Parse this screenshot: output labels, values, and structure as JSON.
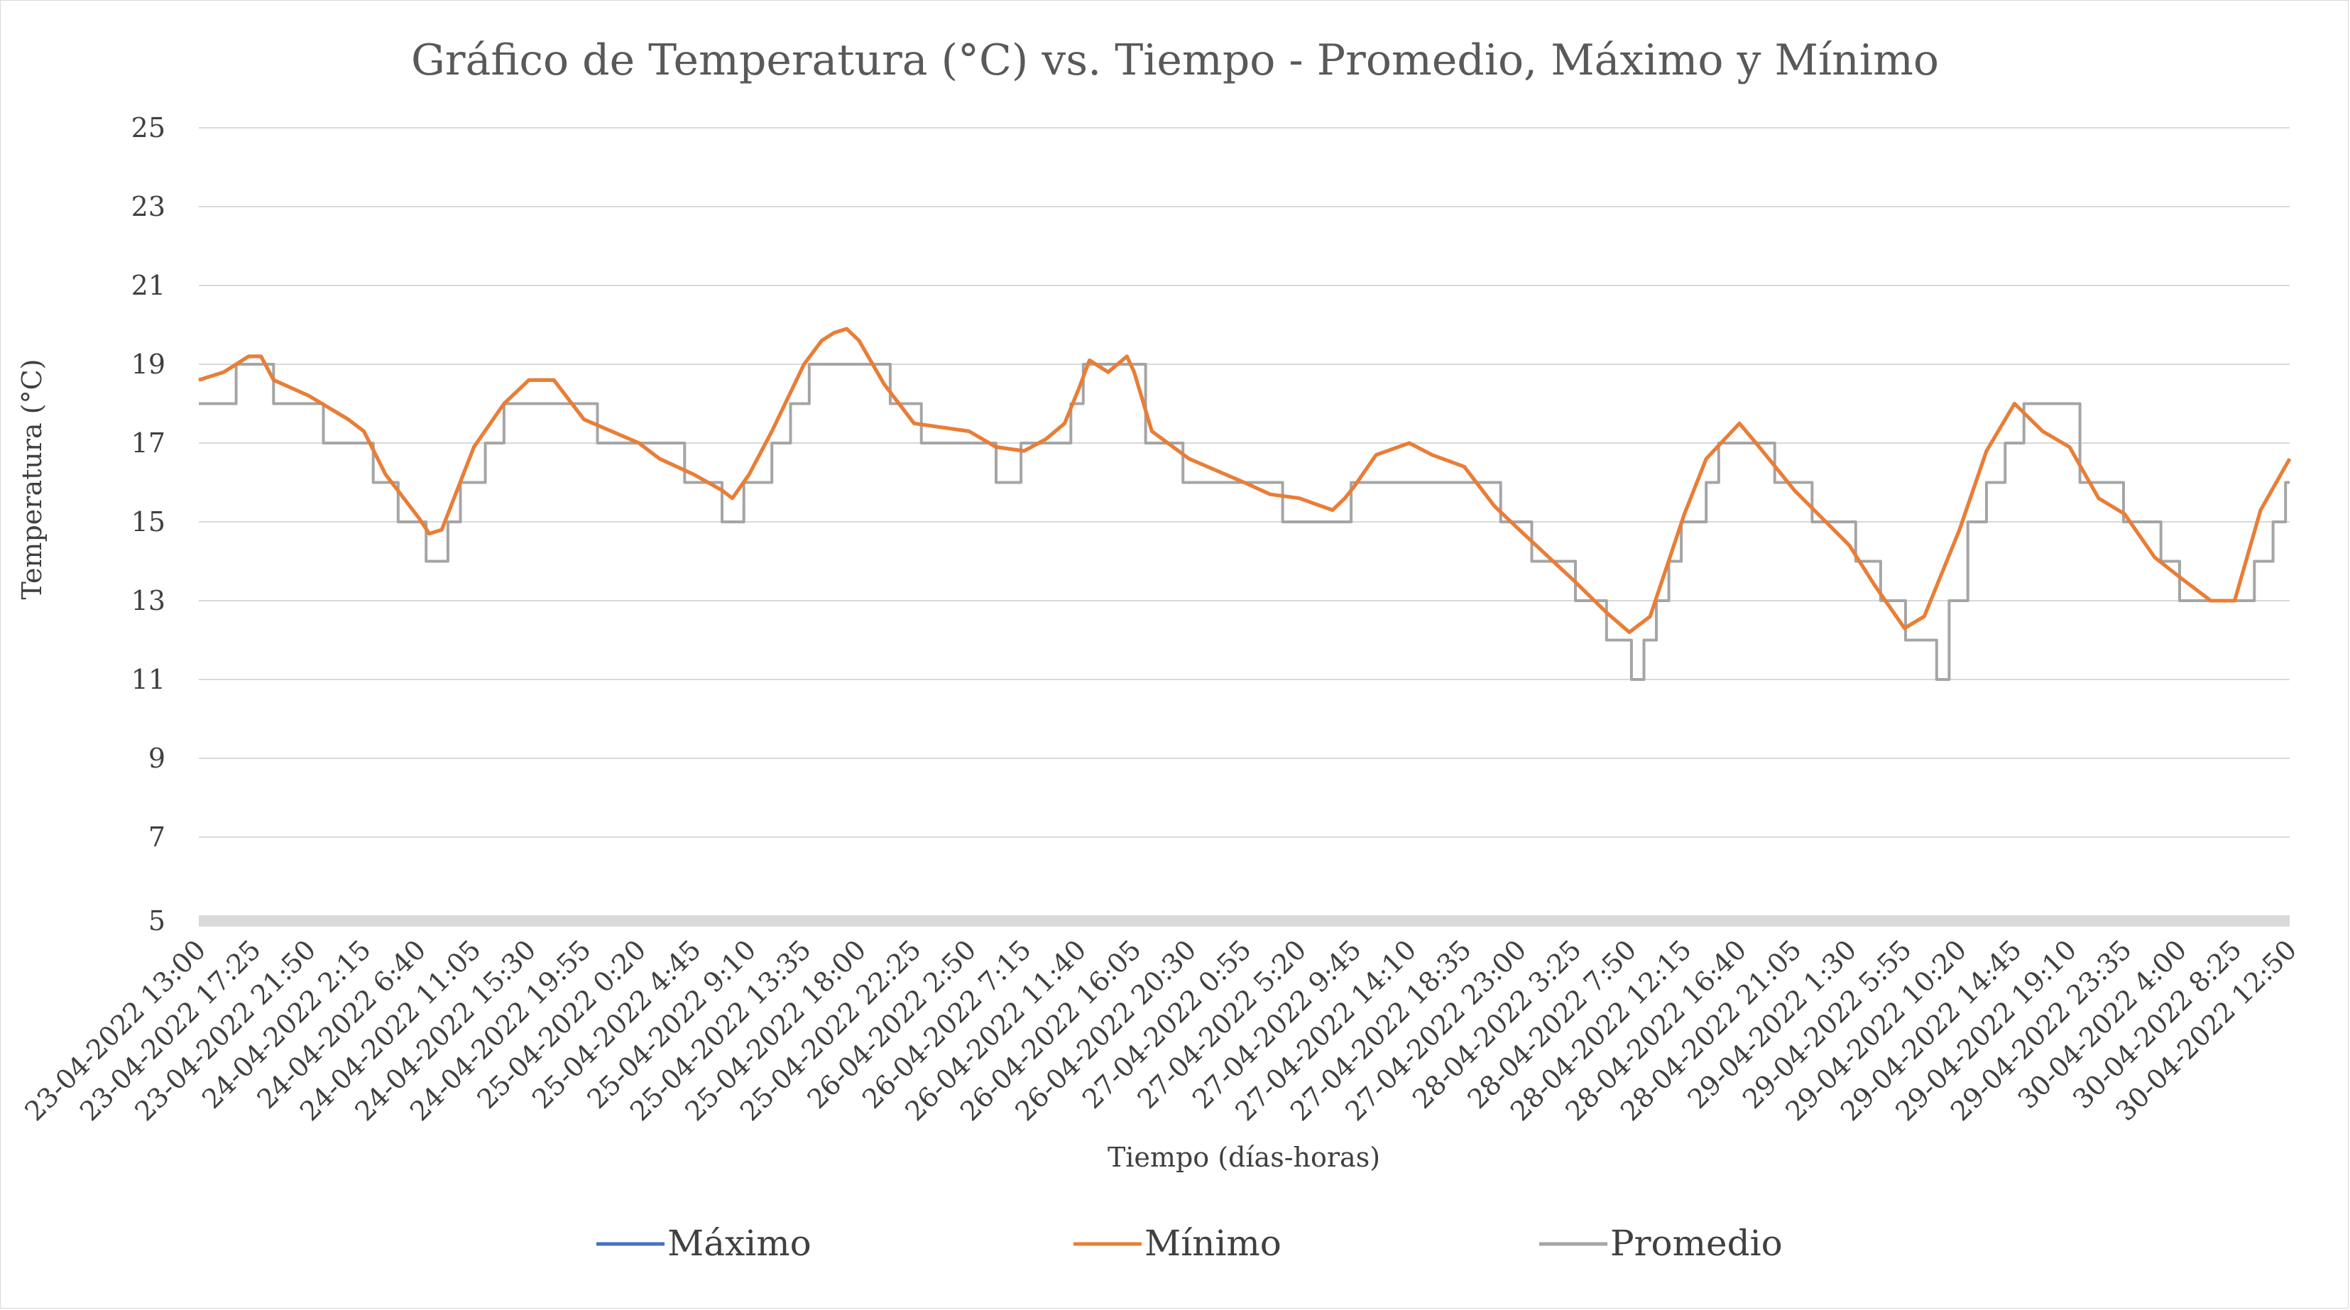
{
  "chart_data": {
    "type": "line",
    "title": "Gráfico de Temperatura (°C) vs. Tiempo - Promedio, Máximo y Mínimo",
    "xlabel": "Tiempo (días-horas)",
    "ylabel": "Temperatura (°C)",
    "ylim": [
      5,
      25
    ],
    "y_ticks": [
      "25",
      "23",
      "21",
      "19",
      "17",
      "15",
      "13",
      "11",
      "9",
      "7",
      "5"
    ],
    "x_tick_labels": [
      "23-04-2022 13:00",
      "23-04-2022 17:25",
      "23-04-2022 21:50",
      "24-04-2022 2:15",
      "24-04-2022 6:40",
      "24-04-2022 11:05",
      "24-04-2022 15:30",
      "24-04-2022 19:55",
      "25-04-2022 0:20",
      "25-04-2022 4:45",
      "25-04-2022 9:10",
      "25-04-2022 13:35",
      "25-04-2022 18:00",
      "25-04-2022 22:25",
      "26-04-2022 2:50",
      "26-04-2022 7:15",
      "26-04-2022 11:40",
      "26-04-2022 16:05",
      "26-04-2022 20:30",
      "27-04-2022 0:55",
      "27-04-2022 5:20",
      "27-04-2022 9:45",
      "27-04-2022 14:10",
      "27-04-2022 18:35",
      "27-04-2022 23:00",
      "28-04-2022 3:25",
      "28-04-2022 7:50",
      "28-04-2022 12:15",
      "28-04-2022 16:40",
      "28-04-2022 21:05",
      "29-04-2022 1:30",
      "29-04-2022 5:55",
      "29-04-2022 10:20",
      "29-04-2022 14:45",
      "29-04-2022 19:10",
      "29-04-2022 23:35",
      "30-04-2022 4:00",
      "30-04-2022 8:25",
      "30-04-2022 12:50"
    ],
    "grid": true,
    "legend_position": "bottom",
    "series": [
      {
        "name": "Máximo",
        "color": "#4472C4",
        "note_hidden_behind": "Mínimo",
        "points": [
          [
            "23-04-2022 13:00",
            18.6
          ],
          [
            "23-04-2022 15:00",
            18.8
          ],
          [
            "23-04-2022 17:00",
            19.2
          ],
          [
            "23-04-2022 18:00",
            19.2
          ],
          [
            "23-04-2022 19:00",
            18.6
          ],
          [
            "23-04-2022 21:50",
            18.2
          ],
          [
            "24-04-2022 1:00",
            17.6
          ],
          [
            "24-04-2022 2:15",
            17.3
          ],
          [
            "24-04-2022 4:00",
            16.2
          ],
          [
            "24-04-2022 6:40",
            15.1
          ],
          [
            "24-04-2022 7:30",
            14.7
          ],
          [
            "24-04-2022 8:30",
            14.8
          ],
          [
            "24-04-2022 11:05",
            16.9
          ],
          [
            "24-04-2022 13:30",
            18.0
          ],
          [
            "24-04-2022 15:30",
            18.6
          ],
          [
            "24-04-2022 17:30",
            18.6
          ],
          [
            "24-04-2022 19:55",
            17.6
          ],
          [
            "25-04-2022 0:20",
            17.0
          ],
          [
            "25-04-2022 2:00",
            16.6
          ],
          [
            "25-04-2022 4:45",
            16.2
          ],
          [
            "25-04-2022 7:00",
            15.8
          ],
          [
            "25-04-2022 7:50",
            15.6
          ],
          [
            "25-04-2022 9:10",
            16.2
          ],
          [
            "25-04-2022 11:00",
            17.3
          ],
          [
            "25-04-2022 13:35",
            19.0
          ],
          [
            "25-04-2022 15:00",
            19.6
          ],
          [
            "25-04-2022 16:00",
            19.8
          ],
          [
            "25-04-2022 17:00",
            19.9
          ],
          [
            "25-04-2022 18:00",
            19.6
          ],
          [
            "25-04-2022 20:00",
            18.5
          ],
          [
            "25-04-2022 22:25",
            17.5
          ],
          [
            "26-04-2022 2:50",
            17.3
          ],
          [
            "26-04-2022 5:00",
            16.9
          ],
          [
            "26-04-2022 7:15",
            16.8
          ],
          [
            "26-04-2022 9:00",
            17.1
          ],
          [
            "26-04-2022 10:30",
            17.5
          ],
          [
            "26-04-2022 11:40",
            18.4
          ],
          [
            "26-04-2022 12:30",
            19.1
          ],
          [
            "26-04-2022 14:00",
            18.8
          ],
          [
            "26-04-2022 15:30",
            19.2
          ],
          [
            "26-04-2022 16:05",
            18.8
          ],
          [
            "26-04-2022 17:30",
            17.3
          ],
          [
            "26-04-2022 20:30",
            16.6
          ],
          [
            "27-04-2022 0:55",
            16.0
          ],
          [
            "27-04-2022 3:00",
            15.7
          ],
          [
            "27-04-2022 5:20",
            15.6
          ],
          [
            "27-04-2022 8:00",
            15.3
          ],
          [
            "27-04-2022 9:00",
            15.6
          ],
          [
            "27-04-2022 9:45",
            15.9
          ],
          [
            "27-04-2022 11:30",
            16.7
          ],
          [
            "27-04-2022 14:10",
            17.0
          ],
          [
            "27-04-2022 16:00",
            16.7
          ],
          [
            "27-04-2022 18:35",
            16.4
          ],
          [
            "27-04-2022 21:00",
            15.4
          ],
          [
            "27-04-2022 23:00",
            14.8
          ],
          [
            "28-04-2022 3:25",
            13.5
          ],
          [
            "28-04-2022 6:00",
            12.7
          ],
          [
            "28-04-2022 7:50",
            12.2
          ],
          [
            "28-04-2022 9:30",
            12.6
          ],
          [
            "28-04-2022 12:15",
            15.2
          ],
          [
            "28-04-2022 14:00",
            16.6
          ],
          [
            "28-04-2022 16:40",
            17.5
          ],
          [
            "28-04-2022 18:00",
            17.0
          ],
          [
            "28-04-2022 21:05",
            15.8
          ],
          [
            "29-04-2022 1:30",
            14.4
          ],
          [
            "29-04-2022 3:30",
            13.4
          ],
          [
            "29-04-2022 5:55",
            12.3
          ],
          [
            "29-04-2022 7:30",
            12.6
          ],
          [
            "29-04-2022 10:20",
            14.8
          ],
          [
            "29-04-2022 12:30",
            16.8
          ],
          [
            "29-04-2022 14:45",
            18.0
          ],
          [
            "29-04-2022 17:00",
            17.3
          ],
          [
            "29-04-2022 19:10",
            16.9
          ],
          [
            "29-04-2022 21:30",
            15.6
          ],
          [
            "29-04-2022 23:35",
            15.2
          ],
          [
            "30-04-2022 2:00",
            14.1
          ],
          [
            "30-04-2022 4:00",
            13.6
          ],
          [
            "30-04-2022 6:30",
            13.0
          ],
          [
            "30-04-2022 8:25",
            13.0
          ],
          [
            "30-04-2022 10:30",
            15.3
          ],
          [
            "30-04-2022 12:50",
            16.6
          ]
        ]
      },
      {
        "name": "Mínimo",
        "color": "#ED7D31",
        "points": [
          [
            "23-04-2022 13:00",
            18.6
          ],
          [
            "23-04-2022 15:00",
            18.8
          ],
          [
            "23-04-2022 17:00",
            19.2
          ],
          [
            "23-04-2022 18:00",
            19.2
          ],
          [
            "23-04-2022 19:00",
            18.6
          ],
          [
            "23-04-2022 21:50",
            18.2
          ],
          [
            "24-04-2022 1:00",
            17.6
          ],
          [
            "24-04-2022 2:15",
            17.3
          ],
          [
            "24-04-2022 4:00",
            16.2
          ],
          [
            "24-04-2022 6:40",
            15.1
          ],
          [
            "24-04-2022 7:30",
            14.7
          ],
          [
            "24-04-2022 8:30",
            14.8
          ],
          [
            "24-04-2022 11:05",
            16.9
          ],
          [
            "24-04-2022 13:30",
            18.0
          ],
          [
            "24-04-2022 15:30",
            18.6
          ],
          [
            "24-04-2022 17:30",
            18.6
          ],
          [
            "24-04-2022 19:55",
            17.6
          ],
          [
            "25-04-2022 0:20",
            17.0
          ],
          [
            "25-04-2022 2:00",
            16.6
          ],
          [
            "25-04-2022 4:45",
            16.2
          ],
          [
            "25-04-2022 7:00",
            15.8
          ],
          [
            "25-04-2022 7:50",
            15.6
          ],
          [
            "25-04-2022 9:10",
            16.2
          ],
          [
            "25-04-2022 11:00",
            17.3
          ],
          [
            "25-04-2022 13:35",
            19.0
          ],
          [
            "25-04-2022 15:00",
            19.6
          ],
          [
            "25-04-2022 16:00",
            19.8
          ],
          [
            "25-04-2022 17:00",
            19.9
          ],
          [
            "25-04-2022 18:00",
            19.6
          ],
          [
            "25-04-2022 20:00",
            18.5
          ],
          [
            "25-04-2022 22:25",
            17.5
          ],
          [
            "26-04-2022 2:50",
            17.3
          ],
          [
            "26-04-2022 5:00",
            16.9
          ],
          [
            "26-04-2022 7:15",
            16.8
          ],
          [
            "26-04-2022 9:00",
            17.1
          ],
          [
            "26-04-2022 10:30",
            17.5
          ],
          [
            "26-04-2022 11:40",
            18.4
          ],
          [
            "26-04-2022 12:30",
            19.1
          ],
          [
            "26-04-2022 14:00",
            18.8
          ],
          [
            "26-04-2022 15:30",
            19.2
          ],
          [
            "26-04-2022 16:05",
            18.8
          ],
          [
            "26-04-2022 17:30",
            17.3
          ],
          [
            "26-04-2022 20:30",
            16.6
          ],
          [
            "27-04-2022 0:55",
            16.0
          ],
          [
            "27-04-2022 3:00",
            15.7
          ],
          [
            "27-04-2022 5:20",
            15.6
          ],
          [
            "27-04-2022 8:00",
            15.3
          ],
          [
            "27-04-2022 9:00",
            15.6
          ],
          [
            "27-04-2022 9:45",
            15.9
          ],
          [
            "27-04-2022 11:30",
            16.7
          ],
          [
            "27-04-2022 14:10",
            17.0
          ],
          [
            "27-04-2022 16:00",
            16.7
          ],
          [
            "27-04-2022 18:35",
            16.4
          ],
          [
            "27-04-2022 21:00",
            15.4
          ],
          [
            "27-04-2022 23:00",
            14.8
          ],
          [
            "28-04-2022 3:25",
            13.5
          ],
          [
            "28-04-2022 6:00",
            12.7
          ],
          [
            "28-04-2022 7:50",
            12.2
          ],
          [
            "28-04-2022 9:30",
            12.6
          ],
          [
            "28-04-2022 12:15",
            15.2
          ],
          [
            "28-04-2022 14:00",
            16.6
          ],
          [
            "28-04-2022 16:40",
            17.5
          ],
          [
            "28-04-2022 18:00",
            17.0
          ],
          [
            "28-04-2022 21:05",
            15.8
          ],
          [
            "29-04-2022 1:30",
            14.4
          ],
          [
            "29-04-2022 3:30",
            13.4
          ],
          [
            "29-04-2022 5:55",
            12.3
          ],
          [
            "29-04-2022 7:30",
            12.6
          ],
          [
            "29-04-2022 10:20",
            14.8
          ],
          [
            "29-04-2022 12:30",
            16.8
          ],
          [
            "29-04-2022 14:45",
            18.0
          ],
          [
            "29-04-2022 17:00",
            17.3
          ],
          [
            "29-04-2022 19:10",
            16.9
          ],
          [
            "29-04-2022 21:30",
            15.6
          ],
          [
            "29-04-2022 23:35",
            15.2
          ],
          [
            "30-04-2022 2:00",
            14.1
          ],
          [
            "30-04-2022 4:00",
            13.6
          ],
          [
            "30-04-2022 6:30",
            13.0
          ],
          [
            "30-04-2022 8:25",
            13.0
          ],
          [
            "30-04-2022 10:30",
            15.3
          ],
          [
            "30-04-2022 12:50",
            16.6
          ]
        ]
      },
      {
        "name": "Promedio",
        "color": "#A5A5A5",
        "step": true,
        "points": [
          [
            "23-04-2022 13:00",
            18
          ],
          [
            "23-04-2022 16:00",
            19
          ],
          [
            "23-04-2022 19:00",
            18
          ],
          [
            "23-04-2022 23:00",
            17
          ],
          [
            "24-04-2022 3:00",
            16
          ],
          [
            "24-04-2022 5:00",
            15
          ],
          [
            "24-04-2022 7:15",
            14
          ],
          [
            "24-04-2022 9:00",
            15
          ],
          [
            "24-04-2022 10:00",
            16
          ],
          [
            "24-04-2022 12:00",
            17
          ],
          [
            "24-04-2022 13:30",
            18
          ],
          [
            "24-04-2022 21:00",
            17
          ],
          [
            "25-04-2022 4:00",
            16
          ],
          [
            "25-04-2022 7:00",
            15
          ],
          [
            "25-04-2022 8:45",
            16
          ],
          [
            "25-04-2022 11:00",
            17
          ],
          [
            "25-04-2022 12:30",
            18
          ],
          [
            "25-04-2022 14:00",
            19
          ],
          [
            "25-04-2022 20:30",
            18
          ],
          [
            "25-04-2022 23:00",
            17
          ],
          [
            "26-04-2022 5:00",
            16
          ],
          [
            "26-04-2022 7:00",
            17
          ],
          [
            "26-04-2022 11:00",
            18
          ],
          [
            "26-04-2022 12:00",
            19
          ],
          [
            "26-04-2022 17:00",
            17
          ],
          [
            "26-04-2022 20:00",
            16
          ],
          [
            "27-04-2022 4:00",
            15
          ],
          [
            "27-04-2022 9:30",
            16
          ],
          [
            "27-04-2022 17:00",
            16
          ],
          [
            "27-04-2022 21:30",
            15
          ],
          [
            "28-04-2022 0:00",
            14
          ],
          [
            "28-04-2022 3:30",
            13
          ],
          [
            "28-04-2022 6:00",
            12
          ],
          [
            "28-04-2022 8:00",
            11
          ],
          [
            "28-04-2022 9:00",
            12
          ],
          [
            "28-04-2022 10:00",
            13
          ],
          [
            "28-04-2022 11:00",
            14
          ],
          [
            "28-04-2022 12:00",
            15
          ],
          [
            "28-04-2022 14:00",
            16
          ],
          [
            "28-04-2022 15:00",
            17
          ],
          [
            "28-04-2022 19:30",
            16
          ],
          [
            "28-04-2022 22:30",
            15
          ],
          [
            "29-04-2022 2:00",
            14
          ],
          [
            "29-04-2022 4:00",
            13
          ],
          [
            "29-04-2022 6:00",
            12
          ],
          [
            "29-04-2022 8:30",
            11
          ],
          [
            "29-04-2022 9:30",
            13
          ],
          [
            "29-04-2022 11:00",
            15
          ],
          [
            "29-04-2022 12:30",
            16
          ],
          [
            "29-04-2022 14:00",
            17
          ],
          [
            "29-04-2022 15:30",
            18
          ],
          [
            "29-04-2022 20:00",
            16
          ],
          [
            "29-04-2022 23:30",
            15
          ],
          [
            "30-04-2022 2:30",
            14
          ],
          [
            "30-04-2022 4:00",
            13
          ],
          [
            "30-04-2022 10:00",
            14
          ],
          [
            "30-04-2022 11:30",
            15
          ],
          [
            "30-04-2022 12:30",
            16
          ],
          [
            "30-04-2022 12:50",
            16
          ]
        ]
      }
    ]
  }
}
